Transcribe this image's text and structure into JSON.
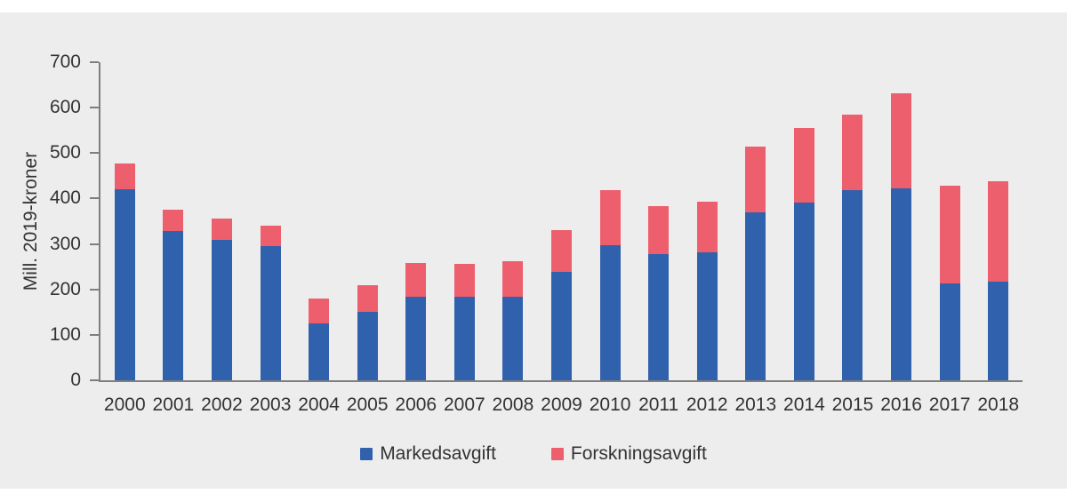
{
  "colors": {
    "page_background": "#ffffff",
    "panel_background": "#ededee",
    "axis_line": "#7e7e7e",
    "text": "#333333"
  },
  "chart_data": {
    "type": "bar",
    "stacked": true,
    "title": "",
    "xlabel": "",
    "ylabel": "Mill. 2019-kroner",
    "ylim": [
      0,
      700
    ],
    "yticks": [
      0,
      100,
      200,
      300,
      400,
      500,
      600,
      700
    ],
    "grid": false,
    "legend_position": "bottom",
    "categories": [
      "2000",
      "2001",
      "2002",
      "2003",
      "2004",
      "2005",
      "2006",
      "2007",
      "2008",
      "2009",
      "2010",
      "2011",
      "2012",
      "2013",
      "2014",
      "2015",
      "2016",
      "2017",
      "2018"
    ],
    "series": [
      {
        "name": "Markedsavgift",
        "color": "#3061ad",
        "values": [
          420,
          328,
          308,
          296,
          126,
          151,
          184,
          184,
          184,
          238,
          297,
          277,
          282,
          370,
          392,
          418,
          423,
          213,
          218
        ]
      },
      {
        "name": "Forskningsavgift",
        "color": "#ee5f6d",
        "values": [
          57,
          47,
          47,
          45,
          54,
          58,
          74,
          73,
          79,
          93,
          121,
          107,
          112,
          145,
          163,
          167,
          209,
          215,
          220
        ]
      }
    ]
  }
}
